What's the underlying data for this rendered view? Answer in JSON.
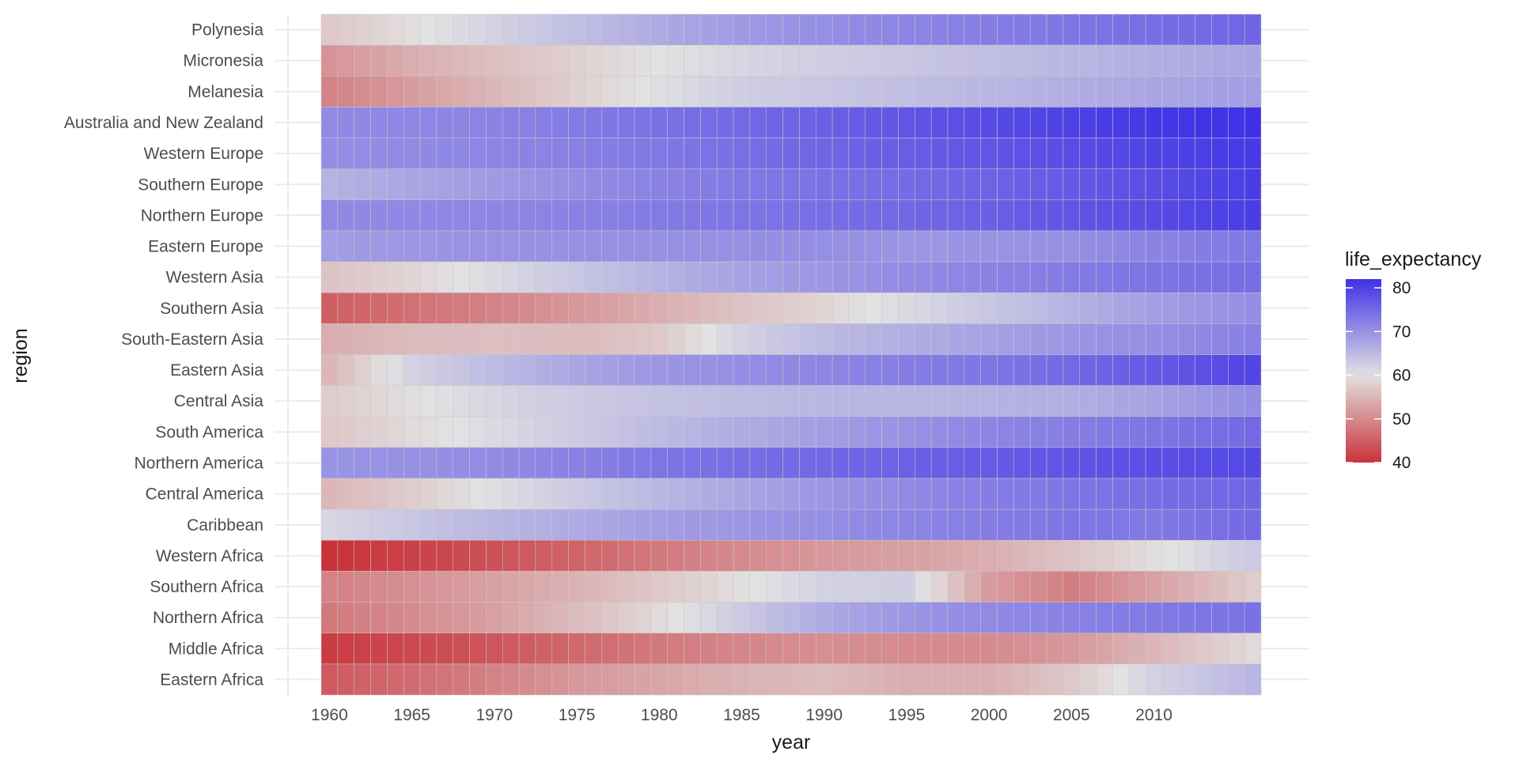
{
  "chart_data": {
    "type": "heatmap",
    "title": "",
    "xlabel": "year",
    "ylabel": "region",
    "legend": {
      "title": "life_expectancy",
      "position": "right",
      "ticks": [
        40,
        50,
        60,
        70,
        80
      ]
    },
    "color_scale": {
      "low": "#c8333a",
      "mid": "#e2e2e2",
      "high": "#3f31e6",
      "limits": [
        40,
        82
      ],
      "midpoint": 60
    },
    "grid": true,
    "x_years": [
      1960,
      2016
    ],
    "x_ticks": [
      1960,
      1965,
      1970,
      1975,
      1980,
      1985,
      1990,
      1995,
      2000,
      2005,
      2010
    ],
    "anchor_years": [
      1960,
      1965,
      1970,
      1975,
      1980,
      1985,
      1990,
      1995,
      2000,
      2005,
      2010,
      2016
    ],
    "regions": [
      {
        "name": "Polynesia",
        "anchors": [
          57,
          59.5,
          62,
          64.5,
          67,
          69,
          70.5,
          71.5,
          72.5,
          73.5,
          74.5,
          75.5
        ]
      },
      {
        "name": "Micronesia",
        "anchors": [
          51,
          54,
          56,
          58,
          60,
          61.5,
          62.5,
          63.5,
          64.5,
          65.5,
          66.5,
          67.5
        ]
      },
      {
        "name": "Melanesia",
        "anchors": [
          49,
          52,
          55,
          58,
          60.5,
          62.5,
          63.5,
          64.5,
          65.5,
          66.5,
          67.5,
          68.5
        ]
      },
      {
        "name": "Australia and New Zealand",
        "anchors": [
          71,
          71.3,
          71.8,
          72.8,
          74,
          75,
          76.2,
          77.5,
          78.8,
          80,
          81.2,
          82
        ]
      },
      {
        "name": "Western Europe",
        "anchors": [
          70.5,
          71,
          71.5,
          72.2,
          73.2,
          74.3,
          75.5,
          76.5,
          77.5,
          78.6,
          79.8,
          81
        ]
      },
      {
        "name": "Southern Europe",
        "anchors": [
          66,
          67.5,
          69,
          70.5,
          72,
          73,
          74,
          74.8,
          75.8,
          77,
          78.5,
          80.5
        ]
      },
      {
        "name": "Northern Europe",
        "anchors": [
          71,
          71.2,
          71.5,
          72,
          72.8,
          73.6,
          74.4,
          75.2,
          76.2,
          77.5,
          78.8,
          80.5
        ]
      },
      {
        "name": "Eastern Europe",
        "anchors": [
          68.5,
          69.5,
          70,
          70.2,
          70.2,
          70.3,
          70.5,
          69.5,
          69.8,
          70.3,
          71.8,
          73.2
        ]
      },
      {
        "name": "Western Asia",
        "anchors": [
          56.5,
          58.5,
          61,
          63.5,
          66,
          68,
          69.5,
          70.8,
          71.8,
          72.8,
          73.8,
          74.6
        ]
      },
      {
        "name": "Southern Asia",
        "anchors": [
          45,
          47,
          49,
          51.5,
          54,
          56.5,
          58.5,
          61,
          63.5,
          66,
          68.5,
          70.5
        ]
      },
      {
        "name": "South-Eastern Asia",
        "anchors": [
          54,
          55.5,
          56,
          55.5,
          57,
          62,
          65,
          66.5,
          68,
          69.5,
          70.5,
          72
        ]
      },
      {
        "name": "Eastern Asia",
        "anchors": [
          55,
          62,
          65,
          67.5,
          69.5,
          70.5,
          71.5,
          72.5,
          73.5,
          75,
          77,
          79.5
        ]
      },
      {
        "name": "Central Asia",
        "anchors": [
          57.5,
          59.5,
          61.5,
          63,
          64,
          64.8,
          65.5,
          65.5,
          66,
          66.5,
          68,
          70.5
        ]
      },
      {
        "name": "South America",
        "anchors": [
          57,
          59,
          61,
          63,
          65,
          66.8,
          68.5,
          70,
          71.5,
          72.5,
          73.5,
          75
        ]
      },
      {
        "name": "Northern America",
        "anchors": [
          69.8,
          70.2,
          70.8,
          72,
          73.5,
          74.5,
          75.2,
          76,
          76.8,
          77.6,
          78.4,
          79
        ]
      },
      {
        "name": "Central America",
        "anchors": [
          55,
          57.5,
          60.5,
          63,
          65.5,
          67.5,
          69.5,
          71,
          72.5,
          73.5,
          74.5,
          75.5
        ]
      },
      {
        "name": "Caribbean",
        "anchors": [
          61.5,
          63.5,
          65.5,
          67,
          68.5,
          69.5,
          70.5,
          71.5,
          72.5,
          73.5,
          73,
          75
        ]
      },
      {
        "name": "Western Africa",
        "anchors": [
          40,
          41.5,
          43.5,
          45.5,
          48,
          50,
          51.5,
          52.5,
          54,
          56.5,
          59.5,
          63
        ]
      },
      {
        "name": "Southern Africa",
        "anchors": [
          49,
          50.5,
          52.5,
          54.5,
          57,
          59.5,
          62,
          62.5,
          52,
          48.5,
          52.5,
          57.5
        ]
      },
      {
        "name": "Northern Africa",
        "anchors": [
          48,
          50,
          52.5,
          55.5,
          59,
          63,
          67,
          69.5,
          71,
          72,
          73,
          74
        ]
      },
      {
        "name": "Middle Africa",
        "anchors": [
          41,
          42.5,
          44,
          46,
          48,
          49.5,
          50.5,
          50,
          50,
          51.5,
          55,
          59
        ]
      },
      {
        "name": "Eastern Africa",
        "anchors": [
          44.5,
          46.5,
          49,
          51.5,
          53,
          54.5,
          55.5,
          54,
          54,
          57,
          62,
          65.5
        ]
      }
    ]
  }
}
